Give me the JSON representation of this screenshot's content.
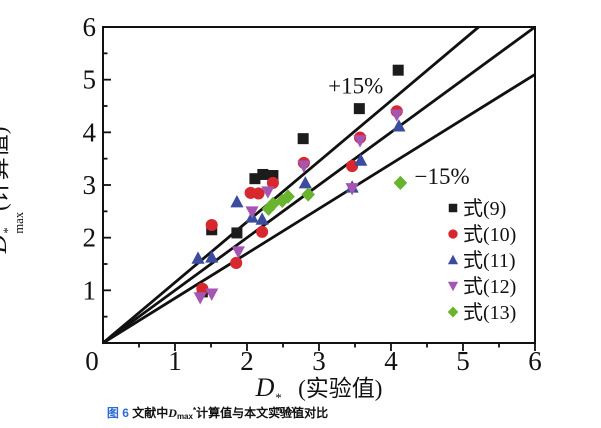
{
  "figure": {
    "caption": {
      "label": "图 6",
      "label_color": "#2e6bd0",
      "parts": [
        {
          "t": "文献中"
        },
        {
          "t": "D",
          "i": true
        },
        {
          "t": "max",
          "sub": true
        },
        {
          "t": "*",
          "sup": true
        },
        {
          "t": "计算值与本文实验值对比"
        }
      ]
    }
  },
  "chart_data": {
    "type": "scatter",
    "title": "图6 文献中Dmax*计算值与本文实验值对比",
    "xlabel": {
      "base": "D",
      "sup": "*",
      "sub": "max",
      "rest": "(实验值)"
    },
    "ylabel": {
      "base": "D",
      "sup": "*",
      "sub": "max",
      "rest": "(计算值)"
    },
    "xlim": [
      0,
      6
    ],
    "ylim": [
      0,
      6
    ],
    "xticks": [
      "0",
      "1",
      "2",
      "3",
      "4",
      "5",
      "6"
    ],
    "yticks": [
      "1",
      "2",
      "3",
      "4",
      "5",
      "6"
    ],
    "grid": false,
    "frame_color": "#111111",
    "line_color": "#111111",
    "legend_position": "lower-right-inside",
    "reference_lines": [
      {
        "slope": 1.15,
        "label": "+15%"
      },
      {
        "slope": 1.0,
        "label": ""
      },
      {
        "slope": 0.85,
        "label": "−15%"
      }
    ],
    "annotations": [
      {
        "text": "+15%",
        "x": 3.51,
        "y": 4.74
      },
      {
        "text": "−15%",
        "x": 4.71,
        "y": 3.02
      }
    ],
    "series": [
      {
        "name": "式(9)",
        "marker": "square",
        "color": "#1c1c1c",
        "points": [
          [
            1.38,
            0.97
          ],
          [
            1.51,
            2.15
          ],
          [
            1.86,
            2.09
          ],
          [
            2.11,
            3.12
          ],
          [
            2.22,
            3.2
          ],
          [
            2.36,
            3.18
          ],
          [
            2.78,
            3.88
          ],
          [
            3.56,
            4.45
          ],
          [
            4.1,
            5.18
          ]
        ]
      },
      {
        "name": "式(10)",
        "marker": "circle",
        "color": "#d7282f",
        "points": [
          [
            1.38,
            1.03
          ],
          [
            1.51,
            2.24
          ],
          [
            1.85,
            1.52
          ],
          [
            2.05,
            2.85
          ],
          [
            2.16,
            2.84
          ],
          [
            2.21,
            2.11
          ],
          [
            2.36,
            3.04
          ],
          [
            2.79,
            3.42
          ],
          [
            3.46,
            3.36
          ],
          [
            3.57,
            3.9
          ],
          [
            4.08,
            4.4
          ]
        ]
      },
      {
        "name": "式(11)",
        "marker": "triangle-up",
        "color": "#3b4b9e",
        "points": [
          [
            1.32,
            1.61
          ],
          [
            1.51,
            1.63
          ],
          [
            1.86,
            2.68
          ],
          [
            2.07,
            2.39
          ],
          [
            2.21,
            2.35
          ],
          [
            2.81,
            3.04
          ],
          [
            3.46,
            2.96
          ],
          [
            3.58,
            3.47
          ],
          [
            4.11,
            4.12
          ]
        ]
      },
      {
        "name": "式(12)",
        "marker": "triangle-down",
        "color": "#a556b2",
        "points": [
          [
            1.35,
            0.86
          ],
          [
            1.51,
            0.93
          ],
          [
            1.88,
            1.73
          ],
          [
            2.07,
            2.49
          ],
          [
            2.29,
            2.87
          ],
          [
            2.79,
            3.36
          ],
          [
            3.46,
            2.93
          ],
          [
            3.57,
            3.84
          ],
          [
            4.08,
            4.33
          ]
        ]
      },
      {
        "name": "式(13)",
        "marker": "diamond",
        "color": "#68b42e",
        "points": [
          [
            2.3,
            2.55
          ],
          [
            2.36,
            2.64
          ],
          [
            2.49,
            2.7
          ],
          [
            2.57,
            2.78
          ],
          [
            2.85,
            2.82
          ],
          [
            4.13,
            3.04
          ]
        ]
      }
    ]
  }
}
